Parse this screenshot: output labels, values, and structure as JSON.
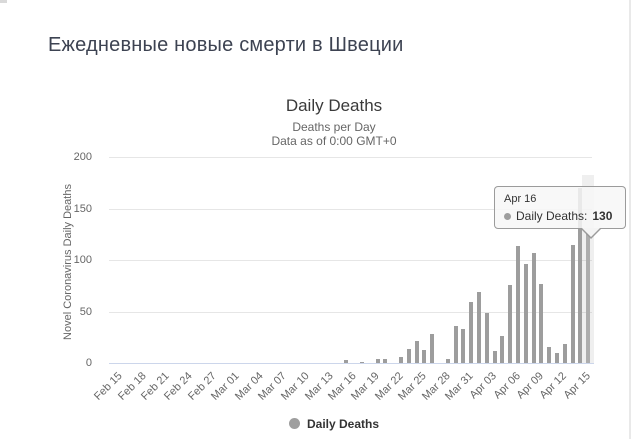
{
  "page": {
    "title": "Ежедневные новые смерти в Швеции"
  },
  "chart": {
    "title": "Daily Deaths",
    "subtitle_line1": "Deaths per Day",
    "subtitle_line2": "Data as of 0:00 GMT+0",
    "y_axis_title": "Novel Coronavirus Daily Deaths",
    "legend_label": "Daily Deaths",
    "colors": {
      "bar": "#9d9d9d",
      "bar_hover": "#adadad",
      "hover_band": "rgba(158,158,158,0.16)",
      "grid": "#e6e6e6",
      "axis_line": "#ccd6eb",
      "label": "#666666",
      "title": "#3a3a3a",
      "legend_marker": "#9e9e9e"
    }
  },
  "tooltip": {
    "date": "Apr 16",
    "series_label": "Daily Deaths:",
    "value": "130"
  },
  "chart_data": {
    "type": "bar",
    "title": "Daily Deaths",
    "subtitle": [
      "Deaths per Day",
      "Data as of 0:00 GMT+0"
    ],
    "xlabel": "",
    "ylabel": "Novel Coronavirus Daily Deaths",
    "ylim": [
      0,
      200
    ],
    "yticks": [
      0,
      50,
      100,
      150,
      200
    ],
    "grid": "horizontal",
    "legend": [
      "Daily Deaths"
    ],
    "legend_position": "bottom-center",
    "categories": [
      "Feb 15",
      "Feb 16",
      "Feb 17",
      "Feb 18",
      "Feb 19",
      "Feb 20",
      "Feb 21",
      "Feb 22",
      "Feb 23",
      "Feb 24",
      "Feb 25",
      "Feb 26",
      "Feb 27",
      "Feb 28",
      "Feb 29",
      "Mar 01",
      "Mar 02",
      "Mar 03",
      "Mar 04",
      "Mar 05",
      "Mar 06",
      "Mar 07",
      "Mar 08",
      "Mar 09",
      "Mar 10",
      "Mar 11",
      "Mar 12",
      "Mar 13",
      "Mar 14",
      "Mar 15",
      "Mar 16",
      "Mar 17",
      "Mar 18",
      "Mar 19",
      "Mar 20",
      "Mar 21",
      "Mar 22",
      "Mar 23",
      "Mar 24",
      "Mar 25",
      "Mar 26",
      "Mar 27",
      "Mar 28",
      "Mar 29",
      "Mar 30",
      "Mar 31",
      "Apr 01",
      "Apr 02",
      "Apr 03",
      "Apr 04",
      "Apr 05",
      "Apr 06",
      "Apr 07",
      "Apr 08",
      "Apr 09",
      "Apr 10",
      "Apr 11",
      "Apr 12",
      "Apr 13",
      "Apr 14",
      "Apr 15",
      "Apr 16"
    ],
    "values": [
      0,
      0,
      0,
      0,
      0,
      0,
      0,
      0,
      0,
      0,
      0,
      0,
      0,
      0,
      0,
      0,
      0,
      0,
      0,
      0,
      0,
      0,
      0,
      0,
      0,
      0,
      0,
      0,
      0,
      0,
      3,
      0,
      1,
      0,
      4,
      4,
      0,
      6,
      14,
      21,
      13,
      28,
      0,
      4,
      36,
      33,
      59,
      69,
      49,
      12,
      26,
      76,
      114,
      96,
      107,
      77,
      16,
      10,
      18,
      115,
      170,
      130
    ],
    "xticklabels": [
      "Feb 15",
      "Feb 18",
      "Feb 21",
      "Feb 24",
      "Feb 27",
      "Mar 01",
      "Mar 04",
      "Mar 07",
      "Mar 10",
      "Mar 13",
      "Mar 16",
      "Mar 19",
      "Mar 22",
      "Mar 25",
      "Mar 28",
      "Mar 31",
      "Apr 03",
      "Apr 06",
      "Apr 09",
      "Apr 12",
      "Apr 15"
    ],
    "xtick_every_n": 3,
    "highlighted_point": {
      "category": "Apr 16",
      "value": 130
    }
  }
}
